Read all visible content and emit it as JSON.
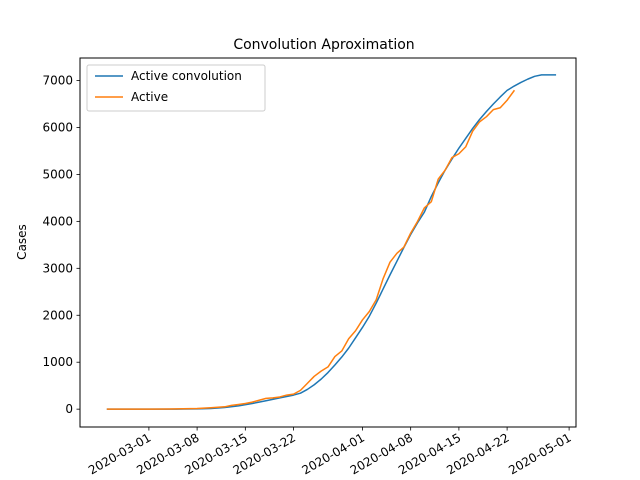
{
  "chart_data": {
    "type": "line",
    "title": "Convolution Aproximation",
    "xlabel": "",
    "ylabel": "Cases",
    "xlim": [
      "2020-02-20",
      "2020-05-02"
    ],
    "ylim": [
      -380,
      7480
    ],
    "x_ticks": [
      "2020-03-01",
      "2020-03-08",
      "2020-03-15",
      "2020-03-22",
      "2020-04-01",
      "2020-04-08",
      "2020-04-15",
      "2020-04-22",
      "2020-05-01"
    ],
    "x_tick_rotation": 30,
    "y_ticks": [
      0,
      1000,
      2000,
      3000,
      4000,
      5000,
      6000,
      7000
    ],
    "grid": false,
    "legend": "top-left",
    "series": [
      {
        "name": "Active convolution",
        "color": "#1f77b4",
        "points": [
          [
            "2020-02-24",
            0
          ],
          [
            "2020-03-01",
            0
          ],
          [
            "2020-03-05",
            2
          ],
          [
            "2020-03-08",
            5
          ],
          [
            "2020-03-10",
            15
          ],
          [
            "2020-03-12",
            35
          ],
          [
            "2020-03-14",
            70
          ],
          [
            "2020-03-16",
            120
          ],
          [
            "2020-03-18",
            180
          ],
          [
            "2020-03-20",
            240
          ],
          [
            "2020-03-22",
            300
          ],
          [
            "2020-03-23",
            340
          ],
          [
            "2020-03-24",
            420
          ],
          [
            "2020-03-25",
            520
          ],
          [
            "2020-03-26",
            640
          ],
          [
            "2020-03-27",
            780
          ],
          [
            "2020-03-28",
            940
          ],
          [
            "2020-03-29",
            1110
          ],
          [
            "2020-03-30",
            1300
          ],
          [
            "2020-03-31",
            1520
          ],
          [
            "2020-04-01",
            1740
          ],
          [
            "2020-04-02",
            1980
          ],
          [
            "2020-04-03",
            2260
          ],
          [
            "2020-04-04",
            2560
          ],
          [
            "2020-04-05",
            2860
          ],
          [
            "2020-04-06",
            3150
          ],
          [
            "2020-04-07",
            3440
          ],
          [
            "2020-04-08",
            3720
          ],
          [
            "2020-04-09",
            3970
          ],
          [
            "2020-04-10",
            4200
          ],
          [
            "2020-04-11",
            4530
          ],
          [
            "2020-04-12",
            4820
          ],
          [
            "2020-04-13",
            5090
          ],
          [
            "2020-04-14",
            5330
          ],
          [
            "2020-04-15",
            5560
          ],
          [
            "2020-04-16",
            5770
          ],
          [
            "2020-04-17",
            5980
          ],
          [
            "2020-04-18",
            6170
          ],
          [
            "2020-04-19",
            6340
          ],
          [
            "2020-04-20",
            6500
          ],
          [
            "2020-04-21",
            6650
          ],
          [
            "2020-04-22",
            6790
          ],
          [
            "2020-04-23",
            6880
          ],
          [
            "2020-04-24",
            6960
          ],
          [
            "2020-04-25",
            7030
          ],
          [
            "2020-04-26",
            7090
          ],
          [
            "2020-04-27",
            7120
          ],
          [
            "2020-04-28",
            7120
          ],
          [
            "2020-04-29",
            7120
          ]
        ]
      },
      {
        "name": "Active",
        "color": "#ff7f0e",
        "points": [
          [
            "2020-02-24",
            0
          ],
          [
            "2020-02-28",
            0
          ],
          [
            "2020-03-01",
            0
          ],
          [
            "2020-03-04",
            3
          ],
          [
            "2020-03-06",
            8
          ],
          [
            "2020-03-08",
            15
          ],
          [
            "2020-03-10",
            30
          ],
          [
            "2020-03-12",
            50
          ],
          [
            "2020-03-13",
            80
          ],
          [
            "2020-03-14",
            100
          ],
          [
            "2020-03-15",
            120
          ],
          [
            "2020-03-16",
            150
          ],
          [
            "2020-03-17",
            190
          ],
          [
            "2020-03-18",
            230
          ],
          [
            "2020-03-19",
            240
          ],
          [
            "2020-03-20",
            260
          ],
          [
            "2020-03-21",
            300
          ],
          [
            "2020-03-22",
            320
          ],
          [
            "2020-03-23",
            400
          ],
          [
            "2020-03-24",
            550
          ],
          [
            "2020-03-25",
            700
          ],
          [
            "2020-03-26",
            810
          ],
          [
            "2020-03-27",
            900
          ],
          [
            "2020-03-28",
            1120
          ],
          [
            "2020-03-29",
            1240
          ],
          [
            "2020-03-30",
            1500
          ],
          [
            "2020-03-31",
            1670
          ],
          [
            "2020-04-01",
            1900
          ],
          [
            "2020-04-02",
            2080
          ],
          [
            "2020-04-03",
            2330
          ],
          [
            "2020-04-04",
            2780
          ],
          [
            "2020-04-05",
            3130
          ],
          [
            "2020-04-06",
            3320
          ],
          [
            "2020-04-07",
            3450
          ],
          [
            "2020-04-08",
            3750
          ],
          [
            "2020-04-09",
            4000
          ],
          [
            "2020-04-10",
            4290
          ],
          [
            "2020-04-11",
            4420
          ],
          [
            "2020-04-12",
            4900
          ],
          [
            "2020-04-13",
            5090
          ],
          [
            "2020-04-14",
            5360
          ],
          [
            "2020-04-15",
            5440
          ],
          [
            "2020-04-16",
            5590
          ],
          [
            "2020-04-17",
            5920
          ],
          [
            "2020-04-18",
            6120
          ],
          [
            "2020-04-19",
            6230
          ],
          [
            "2020-04-20",
            6380
          ],
          [
            "2020-04-21",
            6420
          ],
          [
            "2020-04-22",
            6580
          ],
          [
            "2020-04-23",
            6780
          ]
        ]
      }
    ]
  }
}
